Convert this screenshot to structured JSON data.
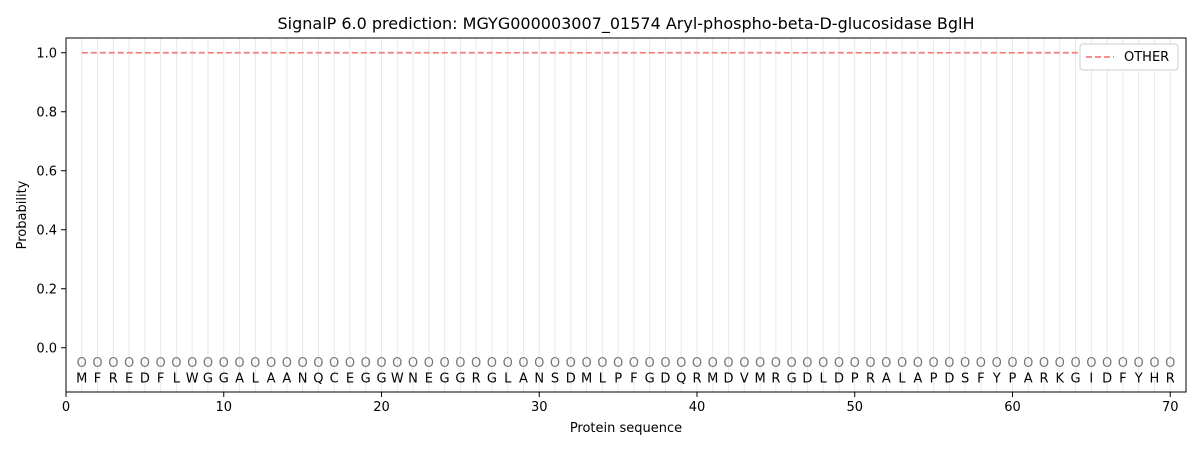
{
  "chart_data": {
    "type": "line",
    "title": "SignalP 6.0 prediction: MGYG000003007_01574 Aryl-phospho-beta-D-glucosidase BglH",
    "xlabel": "Protein sequence",
    "ylabel": "Probability",
    "xlim": [
      0,
      71
    ],
    "ylim": [
      -0.15,
      1.05
    ],
    "x_ticks": [
      0,
      10,
      20,
      30,
      40,
      50,
      60,
      70
    ],
    "y_ticks": [
      0.0,
      0.2,
      0.4,
      0.6,
      0.8,
      1.0
    ],
    "grid": "vertical lines at each residue position",
    "legend_position": "top-right",
    "series": [
      {
        "name": "OTHER",
        "color": "#f08080",
        "style": "dashed",
        "x_start": 1,
        "x_end": 70,
        "value": 1.0
      }
    ],
    "sequence": [
      "M",
      "F",
      "R",
      "E",
      "D",
      "F",
      "L",
      "W",
      "G",
      "G",
      "A",
      "L",
      "A",
      "A",
      "N",
      "Q",
      "C",
      "E",
      "G",
      "G",
      "W",
      "N",
      "E",
      "G",
      "G",
      "R",
      "G",
      "L",
      "A",
      "N",
      "S",
      "D",
      "M",
      "L",
      "P",
      "F",
      "G",
      "D",
      "Q",
      "R",
      "M",
      "D",
      "V",
      "M",
      "R",
      "G",
      "D",
      "L",
      "D",
      "P",
      "R",
      "A",
      "L",
      "A",
      "P",
      "D",
      "S",
      "F",
      "Y",
      "P",
      "A",
      "R",
      "K",
      "G",
      "I",
      "D",
      "F",
      "Y",
      "H",
      "R"
    ],
    "region_labels": [
      "O",
      "O",
      "O",
      "O",
      "O",
      "O",
      "O",
      "O",
      "O",
      "O",
      "O",
      "O",
      "O",
      "O",
      "O",
      "O",
      "O",
      "O",
      "O",
      "O",
      "O",
      "O",
      "O",
      "O",
      "O",
      "O",
      "O",
      "O",
      "O",
      "O",
      "O",
      "O",
      "O",
      "O",
      "O",
      "O",
      "O",
      "O",
      "O",
      "O",
      "O",
      "O",
      "O",
      "O",
      "O",
      "O",
      "O",
      "O",
      "O",
      "O",
      "O",
      "O",
      "O",
      "O",
      "O",
      "O",
      "O",
      "O",
      "O",
      "O",
      "O",
      "O",
      "O",
      "O",
      "O",
      "O",
      "O",
      "O",
      "O",
      "O"
    ]
  }
}
